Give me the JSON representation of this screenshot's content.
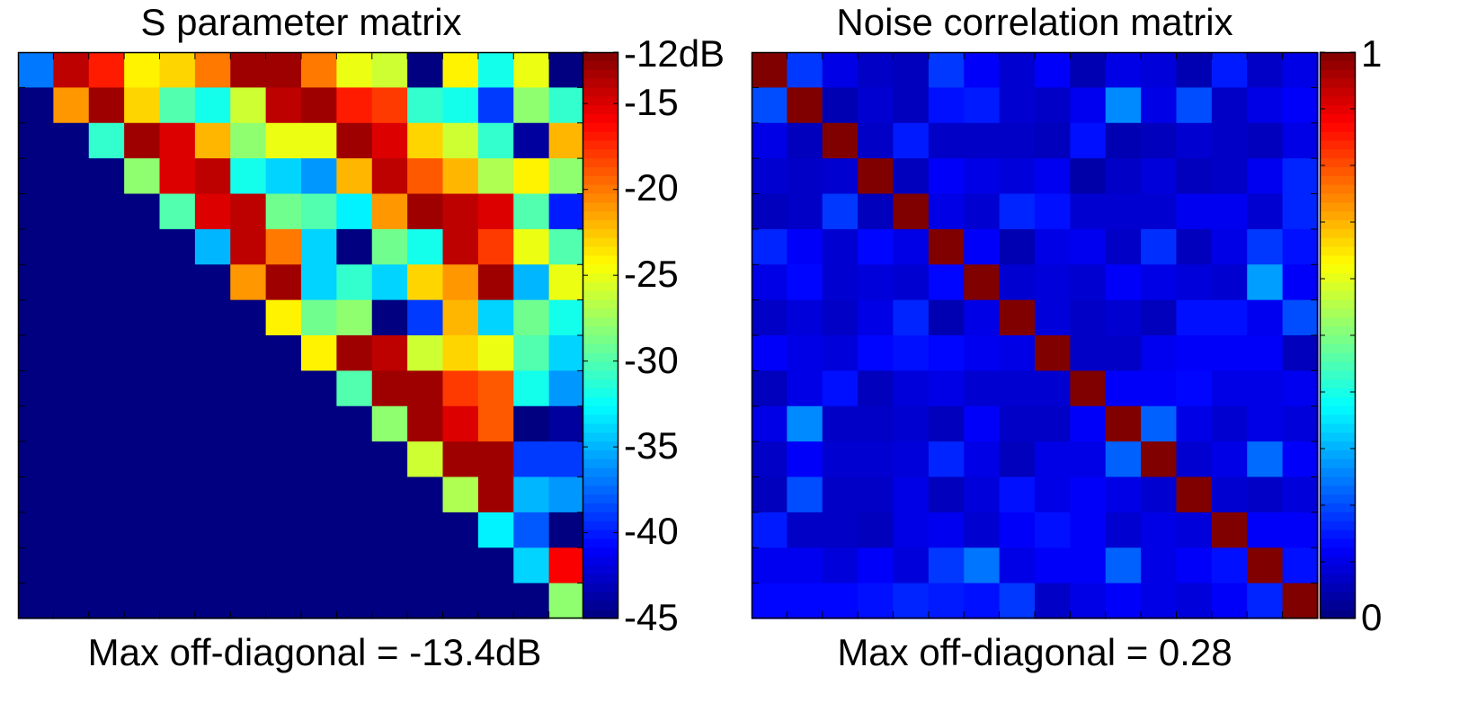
{
  "panels": [
    {
      "title": "S parameter matrix",
      "caption": "Max off-diagonal = -13.4dB",
      "colorbar": {
        "ticks": [
          "-12dB",
          "-15",
          "-20",
          "-25",
          "-30",
          "-35",
          "-40",
          "-45"
        ]
      }
    },
    {
      "title": "Noise correlation matrix",
      "caption": "Max off-diagonal = 0.28",
      "colorbar": {
        "ticks": [
          "1",
          "0"
        ]
      }
    }
  ],
  "chart_data": [
    {
      "type": "heatmap",
      "title": "S parameter matrix",
      "annotation": "Max off-diagonal = -13.4dB",
      "colormap": "jet",
      "clim": [
        -45,
        -12
      ],
      "colorbar_ticks": [
        -12,
        -15,
        -20,
        -25,
        -30,
        -35,
        -40,
        -45
      ],
      "colorbar_unit": "dB",
      "size": 16,
      "matrix": [
        [
          -37,
          -14,
          -17,
          -24,
          -23,
          -20,
          -13,
          -13,
          -20,
          -25,
          -26,
          -45,
          -24,
          -32,
          -25,
          -45
        ],
        [
          -45,
          -21,
          -13,
          -23,
          -30,
          -32,
          -26,
          -14,
          -13,
          -17,
          -18,
          -31,
          -32,
          -39,
          -28,
          -31
        ],
        [
          -45,
          -45,
          -31,
          -13,
          -15,
          -22,
          -28,
          -25,
          -25,
          -13,
          -15,
          -23,
          -26,
          -31,
          -44,
          -22
        ],
        [
          -45,
          -45,
          -45,
          -28,
          -15,
          -14,
          -32,
          -34,
          -36,
          -22,
          -14,
          -19,
          -22,
          -27,
          -24,
          -28
        ],
        [
          -45,
          -45,
          -45,
          -45,
          -30,
          -15,
          -14,
          -29,
          -30,
          -33,
          -21,
          -13,
          -14,
          -15,
          -30,
          -40
        ],
        [
          -45,
          -45,
          -45,
          -45,
          -45,
          -35,
          -14,
          -20,
          -34,
          -45,
          -29,
          -32,
          -14,
          -18,
          -25,
          -30
        ],
        [
          -45,
          -45,
          -45,
          -45,
          -45,
          -45,
          -21,
          -13,
          -34,
          -31,
          -34,
          -23,
          -21,
          -13,
          -35,
          -25
        ],
        [
          -45,
          -45,
          -45,
          -45,
          -45,
          -45,
          -45,
          -24,
          -29,
          -28,
          -45,
          -39,
          -22,
          -34,
          -29,
          -32
        ],
        [
          -45,
          -45,
          -45,
          -45,
          -45,
          -45,
          -45,
          -45,
          -24,
          -13,
          -14,
          -26,
          -23,
          -25,
          -30,
          -34
        ],
        [
          -45,
          -45,
          -45,
          -45,
          -45,
          -45,
          -45,
          -45,
          -45,
          -30,
          -13,
          -13,
          -18,
          -19,
          -32,
          -36
        ],
        [
          -45,
          -45,
          -45,
          -45,
          -45,
          -45,
          -45,
          -45,
          -45,
          -45,
          -28,
          -13,
          -15,
          -19,
          -45,
          -44
        ],
        [
          -45,
          -45,
          -45,
          -45,
          -45,
          -45,
          -45,
          -45,
          -45,
          -45,
          -45,
          -26,
          -13,
          -13,
          -39,
          -39
        ],
        [
          -45,
          -45,
          -45,
          -45,
          -45,
          -45,
          -45,
          -45,
          -45,
          -45,
          -45,
          -45,
          -27,
          -13,
          -35,
          -36
        ],
        [
          -45,
          -45,
          -45,
          -45,
          -45,
          -45,
          -45,
          -45,
          -45,
          -45,
          -45,
          -45,
          -45,
          -33,
          -38,
          -45
        ],
        [
          -45,
          -45,
          -45,
          -45,
          -45,
          -45,
          -45,
          -45,
          -45,
          -45,
          -45,
          -45,
          -45,
          -45,
          -34,
          -16
        ],
        [
          -45,
          -45,
          -45,
          -45,
          -45,
          -45,
          -45,
          -45,
          -45,
          -45,
          -45,
          -45,
          -45,
          -45,
          -45,
          -28
        ]
      ]
    },
    {
      "type": "heatmap",
      "title": "Noise correlation matrix",
      "annotation": "Max off-diagonal = 0.28",
      "colormap": "jet",
      "clim": [
        0,
        1
      ],
      "colorbar_ticks": [
        0,
        1
      ],
      "size": 16,
      "matrix": [
        [
          1.0,
          0.18,
          0.1,
          0.07,
          0.06,
          0.18,
          0.12,
          0.08,
          0.12,
          0.05,
          0.1,
          0.09,
          0.05,
          0.15,
          0.07,
          0.1
        ],
        [
          0.2,
          1.0,
          0.05,
          0.08,
          0.06,
          0.14,
          0.15,
          0.08,
          0.07,
          0.11,
          0.26,
          0.1,
          0.2,
          0.07,
          0.1,
          0.12
        ],
        [
          0.1,
          0.06,
          1.0,
          0.07,
          0.15,
          0.07,
          0.07,
          0.07,
          0.06,
          0.14,
          0.05,
          0.06,
          0.08,
          0.07,
          0.06,
          0.1
        ],
        [
          0.08,
          0.07,
          0.08,
          1.0,
          0.06,
          0.12,
          0.1,
          0.09,
          0.11,
          0.04,
          0.07,
          0.09,
          0.06,
          0.07,
          0.11,
          0.16
        ],
        [
          0.06,
          0.07,
          0.18,
          0.06,
          1.0,
          0.1,
          0.08,
          0.16,
          0.14,
          0.08,
          0.08,
          0.08,
          0.11,
          0.11,
          0.08,
          0.16
        ],
        [
          0.16,
          0.12,
          0.08,
          0.13,
          0.1,
          1.0,
          0.12,
          0.05,
          0.1,
          0.11,
          0.07,
          0.17,
          0.06,
          0.1,
          0.18,
          0.14
        ],
        [
          0.1,
          0.13,
          0.08,
          0.09,
          0.08,
          0.13,
          1.0,
          0.08,
          0.09,
          0.08,
          0.12,
          0.1,
          0.09,
          0.08,
          0.28,
          0.12
        ],
        [
          0.07,
          0.09,
          0.07,
          0.1,
          0.16,
          0.05,
          0.1,
          1.0,
          0.09,
          0.07,
          0.08,
          0.06,
          0.14,
          0.14,
          0.11,
          0.2
        ],
        [
          0.12,
          0.1,
          0.09,
          0.13,
          0.14,
          0.13,
          0.11,
          0.1,
          1.0,
          0.07,
          0.07,
          0.11,
          0.12,
          0.12,
          0.12,
          0.06
        ],
        [
          0.06,
          0.1,
          0.14,
          0.06,
          0.09,
          0.1,
          0.08,
          0.08,
          0.08,
          1.0,
          0.12,
          0.12,
          0.13,
          0.1,
          0.1,
          0.11
        ],
        [
          0.1,
          0.26,
          0.07,
          0.07,
          0.08,
          0.06,
          0.12,
          0.07,
          0.07,
          0.12,
          1.0,
          0.22,
          0.1,
          0.08,
          0.1,
          0.09
        ],
        [
          0.07,
          0.12,
          0.08,
          0.08,
          0.09,
          0.16,
          0.1,
          0.06,
          0.1,
          0.1,
          0.22,
          1.0,
          0.08,
          0.1,
          0.23,
          0.12
        ],
        [
          0.06,
          0.2,
          0.07,
          0.07,
          0.1,
          0.06,
          0.09,
          0.14,
          0.1,
          0.12,
          0.1,
          0.08,
          1.0,
          0.08,
          0.07,
          0.09
        ],
        [
          0.15,
          0.07,
          0.07,
          0.06,
          0.1,
          0.11,
          0.08,
          0.12,
          0.14,
          0.12,
          0.08,
          0.1,
          0.09,
          1.0,
          0.12,
          0.12
        ],
        [
          0.11,
          0.11,
          0.09,
          0.12,
          0.09,
          0.18,
          0.24,
          0.1,
          0.12,
          0.12,
          0.22,
          0.1,
          0.12,
          0.14,
          1.0,
          0.14
        ],
        [
          0.13,
          0.13,
          0.13,
          0.14,
          0.16,
          0.15,
          0.14,
          0.18,
          0.07,
          0.1,
          0.12,
          0.1,
          0.09,
          0.12,
          0.16,
          1.0
        ]
      ]
    }
  ]
}
